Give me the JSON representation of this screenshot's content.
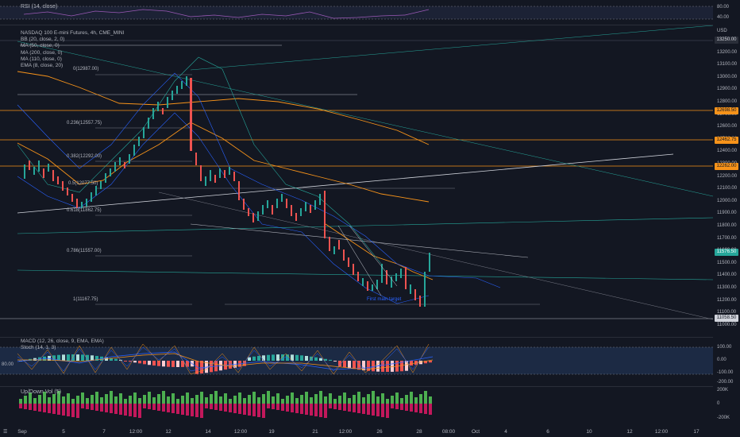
{
  "header": {
    "rsi_label": "RSI (14, close)",
    "symbol": "NASDAQ 100 E-mini Futures, 4h, CME_MINI",
    "currency": "USD"
  },
  "indicators": [
    "BB (20, close, 2, 0)",
    "MA (50, close, 0)",
    "MA (200, close, 0)",
    "MA (110, close, 0)",
    "EMA (8, close, 20)"
  ],
  "rsi_axis": [
    "80.00",
    "40.00"
  ],
  "price_axis": [
    "13300.00",
    "13200.00",
    "13100.00",
    "13000.00",
    "12900.00",
    "12800.00",
    "12700.00",
    "12600.00",
    "12500.00",
    "12400.00",
    "12300.00",
    "12200.00",
    "12100.00",
    "12000.00",
    "11900.00",
    "11800.00",
    "11700.00",
    "11600.00",
    "11500.00",
    "11400.00",
    "11300.00",
    "11200.00",
    "11100.00",
    "11000.00"
  ],
  "price_tags": {
    "top": "13250.00",
    "orange1": "12698.50",
    "orange2": "12462.75",
    "orange3": "12262.00",
    "current": "11576.50",
    "bottom": "11058.50"
  },
  "fib_levels": [
    "0(12987.00)",
    "0.236(12557.75)",
    "0.382(12292.00)",
    "0.5(12077.50)",
    "0.618(11862.75)",
    "0.786(11557.00)",
    "1(11167.75)"
  ],
  "annotations": {
    "target": "First main target"
  },
  "macd": {
    "label1": "MACD (12, 26, close, 9, EMA, EMA)",
    "label2": "Stoch (14, 1, 3)",
    "axis": [
      "100.00",
      "0.00",
      "-100.00",
      "-200.00"
    ],
    "left_value": "80.00"
  },
  "volume": {
    "label": "Up/Down Vol (5)",
    "axis": [
      "200K",
      "0",
      "-200K"
    ]
  },
  "time_axis": [
    "Sep",
    "5",
    "7",
    "12:00",
    "12",
    "14",
    "12:00",
    "19",
    "21",
    "12:00",
    "26",
    "28",
    "08:00",
    "Oct",
    "4",
    "6",
    "10",
    "12",
    "12:00",
    "17"
  ],
  "colors": {
    "bg": "#131722",
    "up": "#26a69a",
    "down": "#ef5350",
    "orange": "#f7931a",
    "blue": "#2962ff"
  }
}
